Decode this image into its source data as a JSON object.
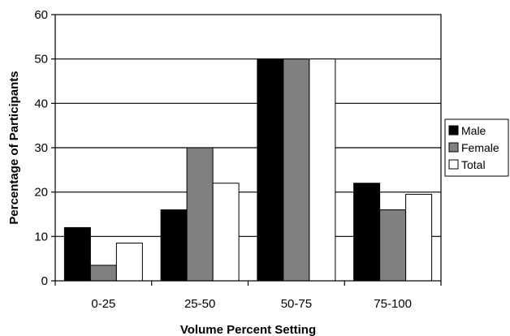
{
  "chart_data": {
    "type": "bar",
    "categories": [
      "0-25",
      "25-50",
      "50-75",
      "75-100"
    ],
    "series": [
      {
        "name": "Male",
        "values": [
          12,
          16,
          50,
          22
        ],
        "color": "#000000"
      },
      {
        "name": "Female",
        "values": [
          3.5,
          30,
          50,
          16
        ],
        "color": "#808080"
      },
      {
        "name": "Total",
        "values": [
          8.5,
          22,
          50,
          19.5
        ],
        "color": "#ffffff"
      }
    ],
    "xlabel": "Volume Percent Setting",
    "ylabel": "Percentage of Participants",
    "ylim": [
      0,
      60
    ],
    "yticks": [
      0,
      10,
      20,
      30,
      40,
      50,
      60
    ],
    "grid": true,
    "legend": "right"
  }
}
